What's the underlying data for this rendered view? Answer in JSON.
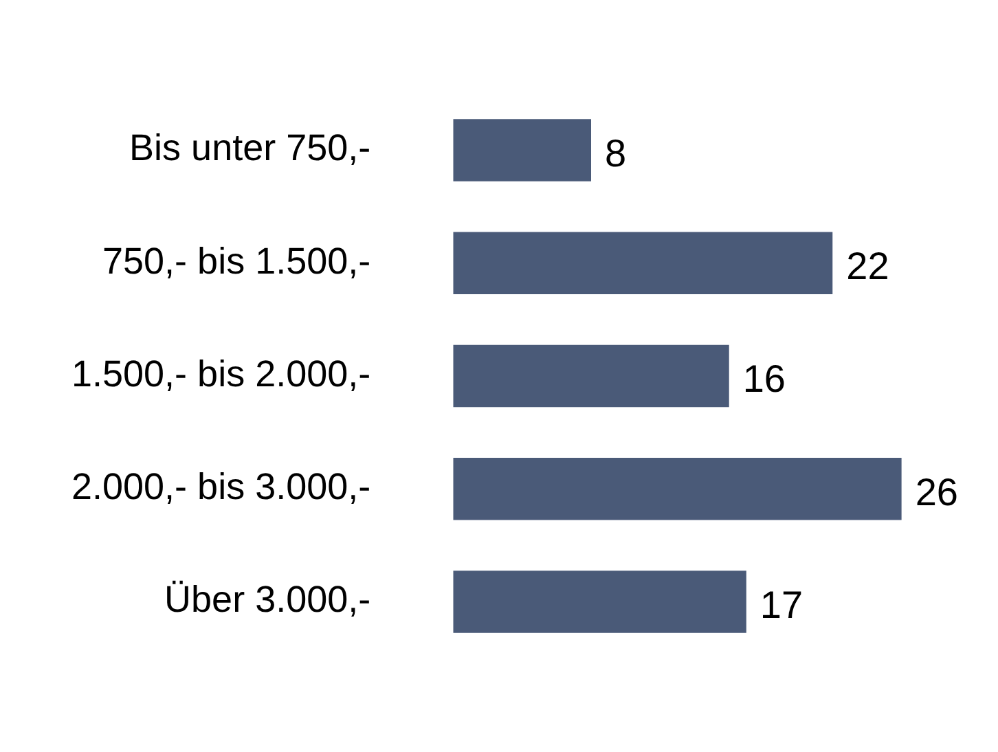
{
  "chart_data": {
    "type": "bar",
    "orientation": "horizontal",
    "categories": [
      "Bis unter 750,-",
      "750,- bis 1.500,-",
      "1.500,- bis 2.000,-",
      "2.000,- bis 3.000,-",
      "Über 3.000,-"
    ],
    "values": [
      8,
      22,
      16,
      26,
      17
    ],
    "color": "#4a5a78",
    "data_labels": true
  }
}
